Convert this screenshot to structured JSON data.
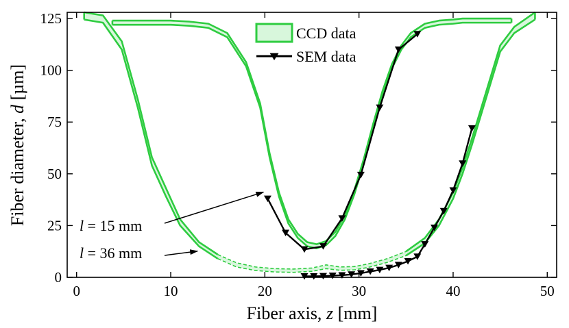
{
  "chart_data": {
    "type": "line",
    "title": "",
    "xlabel": {
      "prefix": "Fiber axis, ",
      "var": "z",
      "suffix": " [mm]"
    },
    "ylabel": {
      "prefix": "Fiber diameter, ",
      "var": "d",
      "suffix": " [µm]"
    },
    "xlim": [
      -1,
      51
    ],
    "ylim": [
      0,
      128
    ],
    "xticks": [
      0,
      10,
      20,
      30,
      40,
      50
    ],
    "yticks": [
      0,
      25,
      50,
      75,
      100,
      125
    ],
    "grid": false,
    "legend": {
      "position": "top-center",
      "entries": [
        {
          "label": "CCD data",
          "style": "band"
        },
        {
          "label": "SEM data",
          "style": "line-marker"
        }
      ]
    },
    "colors": {
      "ccd": "#2ecc40",
      "ccd_fill": "#d8f7dc",
      "sem": "#000000"
    },
    "series": [
      {
        "name": "CCD data (l = 15 mm) upper",
        "x": [
          3.8,
          6,
          8,
          10,
          12,
          14,
          16,
          18,
          19.5,
          20.5,
          21.5,
          22.5,
          23.5,
          24.5,
          25.5,
          26.5,
          27.5,
          28.5,
          29.5,
          30.5,
          31.5,
          32.5,
          33.5,
          34.5,
          35.5,
          37,
          38.5,
          40,
          41,
          42,
          43,
          44,
          45,
          46.2
        ],
        "y": [
          124,
          124,
          124,
          124,
          123.5,
          122.5,
          118,
          104,
          84,
          60,
          41,
          28,
          21,
          17,
          16,
          17.5,
          22,
          30,
          42,
          57,
          74,
          90,
          103,
          112,
          118,
          122.5,
          124,
          124.5,
          125,
          125,
          125,
          125,
          125,
          125
        ]
      },
      {
        "name": "CCD data (l = 15 mm) lower",
        "x": [
          3.8,
          6,
          8,
          10,
          12,
          14,
          16,
          18,
          19.5,
          20.5,
          21.5,
          22.5,
          23.5,
          24.5,
          25.5,
          26.5,
          27.5,
          28.5,
          29.5,
          30.5,
          31.5,
          32.5,
          33.5,
          34.5,
          35.5,
          37,
          38.5,
          40,
          41,
          42,
          43,
          44,
          45,
          46.2
        ],
        "y": [
          122,
          122,
          122,
          122,
          121.5,
          120.5,
          116,
          102,
          82,
          58,
          39,
          26,
          19,
          15,
          14,
          15.5,
          20,
          28,
          40,
          55,
          72,
          88,
          101,
          110,
          116,
          120.5,
          122,
          122.5,
          123,
          123,
          123,
          123,
          123,
          123
        ]
      },
      {
        "name": "CCD data (l = 36 mm) upper",
        "x": [
          0.8,
          2.8,
          4.8,
          6.5,
          8,
          9.5,
          11,
          13,
          15,
          17,
          19,
          21,
          23,
          25,
          26.5,
          28,
          29.5,
          31,
          33,
          35,
          37,
          38.5,
          40,
          41,
          42,
          43,
          44,
          45,
          46.5,
          48.7
        ],
        "y": [
          128,
          126.5,
          114,
          86,
          58,
          43,
          28,
          17,
          11,
          7,
          5,
          4.2,
          4,
          4.5,
          6,
          5,
          5.2,
          6.5,
          9,
          12.5,
          19,
          28,
          41,
          53,
          67,
          82,
          97,
          112,
          121,
          128
        ]
      },
      {
        "name": "CCD data (l = 36 mm) lower",
        "x": [
          0.8,
          2.8,
          4.8,
          6.5,
          8,
          9.5,
          11,
          13,
          15,
          17,
          19,
          21,
          23,
          25,
          26.5,
          28,
          29.5,
          31,
          33,
          35,
          37,
          38.5,
          40,
          41,
          42,
          43,
          44,
          45,
          46.5,
          48.7
        ],
        "y": [
          124.5,
          123,
          110,
          82,
          54,
          39,
          25,
          15,
          9,
          5,
          3.3,
          2.6,
          2.4,
          2.9,
          4.2,
          3.4,
          3.6,
          4.8,
          7.2,
          10.5,
          16.5,
          25,
          38,
          50,
          64,
          79,
          94,
          109,
          118,
          124.5
        ]
      },
      {
        "name": "SEM data (l = 15 mm)",
        "x": [
          20.3,
          22.2,
          24.2,
          26.2,
          28.2,
          30.2,
          32.2,
          34.2,
          36.2
        ],
        "y": [
          38,
          21.5,
          13.5,
          15,
          28.5,
          49.5,
          82,
          110,
          117.5
        ]
      },
      {
        "name": "SEM data (l = 36 mm)",
        "x": [
          24.2,
          25.2,
          26.2,
          27.2,
          28.2,
          29.2,
          30.2,
          31.2,
          32.2,
          33.2,
          34.2,
          35.2,
          36.2,
          37,
          38,
          39,
          40,
          41,
          42
        ],
        "y": [
          0.5,
          0.5,
          0.6,
          0.8,
          1,
          1.4,
          2,
          2.8,
          3.6,
          4.6,
          6,
          7.8,
          10,
          16,
          24,
          32,
          42,
          55,
          72
        ]
      }
    ],
    "annotations": [
      {
        "var": "l",
        "text": " = 15 mm",
        "target_x": 20,
        "target_y": 41.5
      },
      {
        "var": "l",
        "text": " = 36 mm",
        "target_x": 13,
        "target_y": 13
      }
    ]
  }
}
